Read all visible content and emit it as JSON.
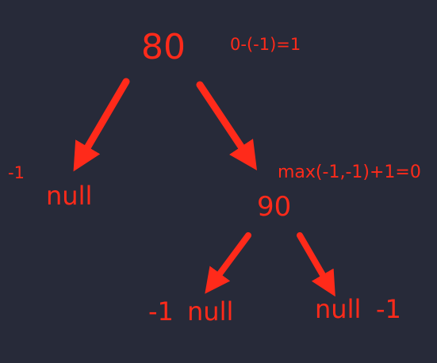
{
  "colors": {
    "background": "#272a39",
    "accent": "#ff2a1a"
  },
  "tree": {
    "root": {
      "value": "80",
      "note": "0-(-1)=1"
    },
    "left": {
      "height": "-1",
      "label": "null"
    },
    "right": {
      "value": "90",
      "note": "max(-1,-1)+1=0",
      "left": {
        "height": "-1",
        "label": "null"
      },
      "right": {
        "label": "null",
        "height": "-1"
      }
    }
  }
}
